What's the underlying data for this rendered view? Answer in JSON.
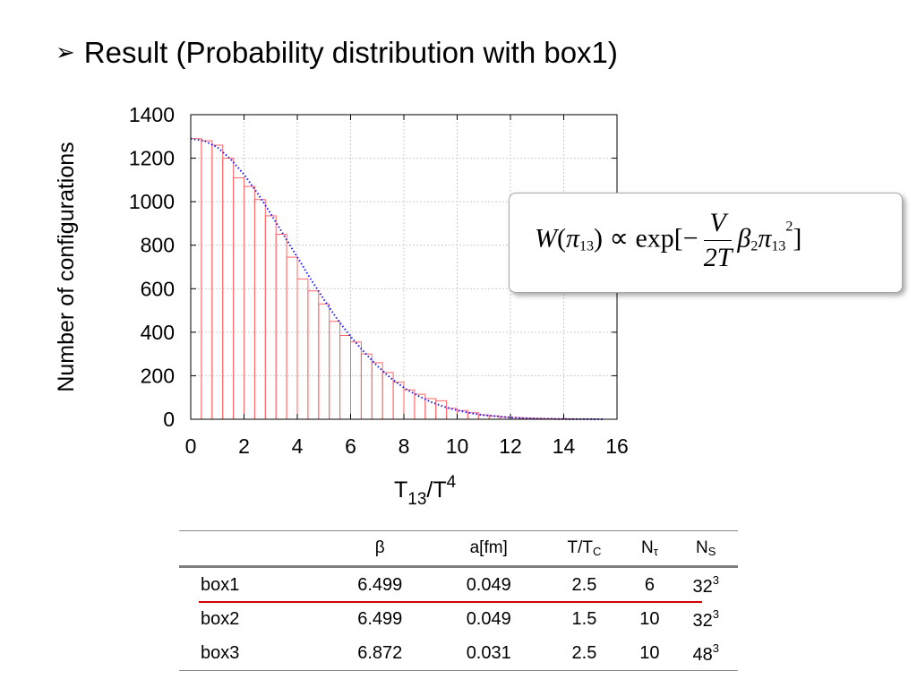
{
  "title": {
    "bullet": "➢",
    "text": "Result (Probability distribution with box1)"
  },
  "chart_data": {
    "type": "bar",
    "ylabel": "Number of configurations",
    "xlabel_main": "T",
    "xlabel_sub": "13",
    "xlabel_mid": "/T",
    "xlabel_sup": "4",
    "xlim": [
      0,
      16
    ],
    "ylim": [
      0,
      1400
    ],
    "xticks": [
      0,
      2,
      4,
      6,
      8,
      10,
      12,
      14,
      16
    ],
    "yticks": [
      0,
      200,
      400,
      600,
      800,
      1000,
      1200,
      1400
    ],
    "grid": true,
    "bin_width": 0.4,
    "bin_starts": [
      0,
      0.4,
      0.8,
      1.2,
      1.6,
      2.0,
      2.4,
      2.8,
      3.2,
      3.6,
      4.0,
      4.4,
      4.8,
      5.2,
      5.6,
      6.0,
      6.4,
      6.8,
      7.2,
      7.6,
      8.0,
      8.4,
      8.8,
      9.2,
      9.6,
      10.0,
      10.4,
      10.8,
      11.2,
      11.6,
      12.0,
      12.4,
      12.8,
      13.2,
      13.6,
      14.0,
      14.4,
      14.8,
      15.2
    ],
    "histogram": [
      1290,
      1280,
      1260,
      1200,
      1110,
      1070,
      1010,
      935,
      850,
      745,
      645,
      590,
      530,
      450,
      385,
      355,
      300,
      260,
      215,
      170,
      135,
      115,
      95,
      85,
      50,
      40,
      30,
      20,
      15,
      10,
      8,
      5,
      4,
      3,
      2,
      2,
      1,
      1,
      0
    ],
    "fit_curve": {
      "name": "",
      "style": "blue dotted",
      "x": [
        0,
        0.5,
        1,
        1.5,
        2,
        2.5,
        3,
        3.5,
        4,
        4.5,
        5,
        5.5,
        6,
        6.5,
        7,
        7.5,
        8,
        8.5,
        9,
        9.5,
        10,
        10.5,
        11,
        12,
        13,
        14,
        15.5
      ],
      "y": [
        1290,
        1280,
        1250,
        1195,
        1125,
        1040,
        945,
        845,
        745,
        645,
        550,
        460,
        380,
        310,
        245,
        190,
        145,
        110,
        80,
        58,
        41,
        28,
        19,
        8,
        3,
        1,
        0
      ]
    }
  },
  "formula": {
    "W": "W",
    "pi": "π",
    "sub13": "13",
    "propto": ") ∝ exp[−",
    "open": "(",
    "frac_num": "V",
    "frac_den": "2T",
    "beta": "β",
    "sub2": "2",
    "sup2": "2",
    "close": "]"
  },
  "table": {
    "headers": {
      "empty": "",
      "beta": "β",
      "a": "a[fm]",
      "t_main": "T/T",
      "t_sub": "C",
      "nt_main": "N",
      "nt_sub": "τ",
      "ns_main": "N",
      "ns_sub": "S"
    },
    "rows": [
      {
        "name": "box1",
        "beta": "6.499",
        "a": "0.049",
        "t": "2.5",
        "nt": "6",
        "ns": "32",
        "ns_sup": "3"
      },
      {
        "name": "box2",
        "beta": "6.499",
        "a": "0.049",
        "t": "1.5",
        "nt": "10",
        "ns": "32",
        "ns_sup": "3"
      },
      {
        "name": "box3",
        "beta": "6.872",
        "a": "0.031",
        "t": "2.5",
        "nt": "10",
        "ns": "48",
        "ns_sup": "3"
      }
    ]
  },
  "colors": {
    "histogram": "#ff6666",
    "fit_curve": "#1a1aff",
    "grid": "#cccccc",
    "highlight_line": "#d00000"
  }
}
